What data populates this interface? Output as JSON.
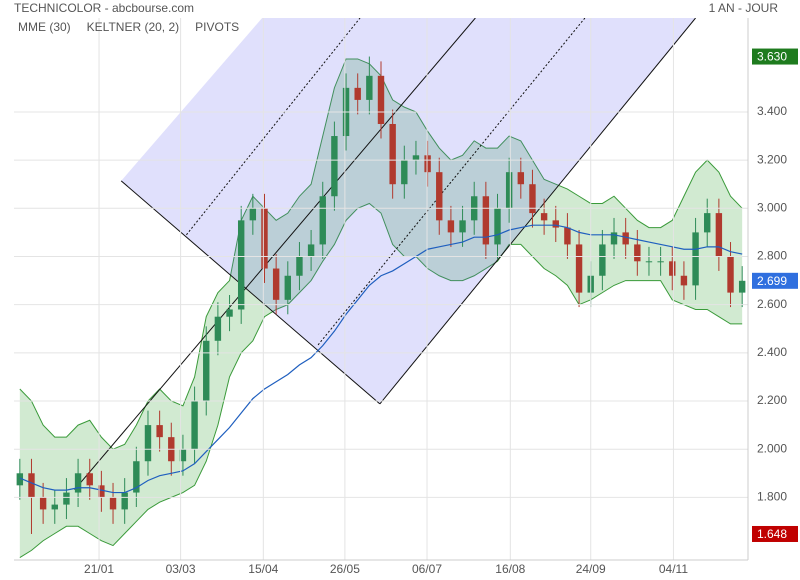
{
  "chart_data": {
    "type": "candlestick",
    "title": "TECHNICOLOR - abcbourse.com",
    "period": "1 AN - JOUR",
    "legend": [
      {
        "name": "MME (30)",
        "color": "#1f5fbf"
      },
      {
        "name": "KELTNER (20, 2)",
        "color": "#3a9a3a"
      },
      {
        "name": "PIVOTS",
        "color": "#555555"
      }
    ],
    "up_color": "#2e8b57",
    "down_color": "#b03a2e",
    "open": [
      1.85,
      1.9,
      1.8,
      1.75,
      1.77,
      1.82,
      1.9,
      1.85,
      1.8,
      1.75,
      1.82,
      1.95,
      2.1,
      2.05,
      1.95,
      2.0,
      2.2,
      2.45,
      2.55,
      2.58,
      2.95,
      3.0,
      2.75,
      2.62,
      2.72,
      2.8,
      2.85,
      3.05,
      3.3,
      3.5,
      3.45,
      3.55,
      3.35,
      3.1,
      3.2,
      3.22,
      3.15,
      2.95,
      2.9,
      2.95,
      3.05,
      2.85,
      3.0,
      3.15,
      3.1,
      2.98,
      2.95,
      2.92,
      2.85,
      2.65,
      2.72,
      2.85,
      2.9,
      2.85,
      2.78,
      2.78,
      2.78,
      2.72,
      2.68,
      2.9,
      2.98,
      2.8,
      2.65
    ],
    "high": [
      1.96,
      1.96,
      1.86,
      1.83,
      1.88,
      1.96,
      1.96,
      1.91,
      1.86,
      1.88,
      2.01,
      2.16,
      2.16,
      2.11,
      2.06,
      2.26,
      2.51,
      2.61,
      2.64,
      3.01,
      3.06,
      3.06,
      2.81,
      2.78,
      2.86,
      2.91,
      3.11,
      3.36,
      3.56,
      3.56,
      3.63,
      3.61,
      3.41,
      3.26,
      3.28,
      3.28,
      3.21,
      3.01,
      3.01,
      3.11,
      3.11,
      3.06,
      3.21,
      3.21,
      3.16,
      3.04,
      3.01,
      2.98,
      2.91,
      2.78,
      2.91,
      2.96,
      2.96,
      2.91,
      2.84,
      2.84,
      2.84,
      2.78,
      2.96,
      3.04,
      3.04,
      2.86,
      2.76
    ],
    "low": [
      1.79,
      1.648,
      1.69,
      1.69,
      1.71,
      1.76,
      1.79,
      1.74,
      1.69,
      1.69,
      1.76,
      1.89,
      1.99,
      1.89,
      1.89,
      1.94,
      2.14,
      2.39,
      2.49,
      2.52,
      2.89,
      2.69,
      2.56,
      2.56,
      2.66,
      2.74,
      2.79,
      2.99,
      3.24,
      3.39,
      3.39,
      3.29,
      3.04,
      3.04,
      3.14,
      3.09,
      2.89,
      2.84,
      2.84,
      2.89,
      2.79,
      2.79,
      2.94,
      3.04,
      2.92,
      2.89,
      2.86,
      2.79,
      2.59,
      2.59,
      2.66,
      2.79,
      2.79,
      2.72,
      2.72,
      2.72,
      2.66,
      2.62,
      2.62,
      2.84,
      2.74,
      2.59,
      2.59
    ],
    "close": [
      1.9,
      1.8,
      1.75,
      1.77,
      1.82,
      1.9,
      1.85,
      1.8,
      1.75,
      1.82,
      1.95,
      2.1,
      2.05,
      1.95,
      2.0,
      2.2,
      2.45,
      2.55,
      2.58,
      2.95,
      3.0,
      2.75,
      2.62,
      2.72,
      2.8,
      2.85,
      3.05,
      3.3,
      3.5,
      3.45,
      3.55,
      3.35,
      3.1,
      3.2,
      3.22,
      3.15,
      2.95,
      2.9,
      2.95,
      3.05,
      2.85,
      3.0,
      3.15,
      3.1,
      2.98,
      2.95,
      2.92,
      2.85,
      2.65,
      2.72,
      2.85,
      2.9,
      2.85,
      2.78,
      2.78,
      2.78,
      2.72,
      2.68,
      2.9,
      2.98,
      2.8,
      2.65,
      2.699
    ],
    "mme": [
      1.88,
      1.86,
      1.84,
      1.83,
      1.83,
      1.84,
      1.84,
      1.83,
      1.82,
      1.82,
      1.84,
      1.87,
      1.89,
      1.9,
      1.91,
      1.94,
      1.99,
      2.04,
      2.09,
      2.15,
      2.21,
      2.25,
      2.28,
      2.31,
      2.35,
      2.38,
      2.43,
      2.49,
      2.56,
      2.62,
      2.68,
      2.72,
      2.74,
      2.77,
      2.8,
      2.83,
      2.84,
      2.85,
      2.86,
      2.88,
      2.88,
      2.89,
      2.91,
      2.92,
      2.93,
      2.93,
      2.93,
      2.92,
      2.9,
      2.89,
      2.89,
      2.89,
      2.88,
      2.87,
      2.86,
      2.85,
      2.84,
      2.83,
      2.83,
      2.84,
      2.84,
      2.82,
      2.81
    ],
    "keltner_upper": [
      2.25,
      2.2,
      2.1,
      2.05,
      2.05,
      2.1,
      2.12,
      2.05,
      2.0,
      2.02,
      2.1,
      2.2,
      2.25,
      2.2,
      2.18,
      2.3,
      2.55,
      2.65,
      2.7,
      2.95,
      3.05,
      3.0,
      2.95,
      2.98,
      3.05,
      3.1,
      3.3,
      3.5,
      3.62,
      3.62,
      3.6,
      3.55,
      3.45,
      3.42,
      3.4,
      3.32,
      3.25,
      3.2,
      3.22,
      3.28,
      3.25,
      3.25,
      3.3,
      3.28,
      3.2,
      3.12,
      3.1,
      3.08,
      3.05,
      3.02,
      3.02,
      3.05,
      3.0,
      2.95,
      2.92,
      2.92,
      2.95,
      3.05,
      3.15,
      3.2,
      3.15,
      3.05,
      3.0
    ],
    "keltner_lower": [
      1.55,
      1.58,
      1.62,
      1.65,
      1.68,
      1.68,
      1.65,
      1.62,
      1.6,
      1.65,
      1.7,
      1.75,
      1.78,
      1.8,
      1.82,
      1.85,
      1.95,
      2.1,
      2.3,
      2.4,
      2.45,
      2.55,
      2.58,
      2.6,
      2.65,
      2.7,
      2.78,
      2.85,
      2.95,
      3.0,
      3.02,
      2.98,
      2.85,
      2.8,
      2.8,
      2.75,
      2.72,
      2.7,
      2.7,
      2.72,
      2.75,
      2.78,
      2.85,
      2.85,
      2.8,
      2.75,
      2.72,
      2.68,
      2.6,
      2.62,
      2.65,
      2.68,
      2.7,
      2.7,
      2.7,
      2.7,
      2.62,
      2.6,
      2.58,
      2.58,
      2.55,
      2.52,
      2.52
    ],
    "pivot_channel": {
      "area": {
        "x": [
          8.7,
          20.8,
          58.0,
          30.9
        ],
        "y": [
          3.114,
          3.79,
          3.79,
          2.188
        ]
      },
      "lines": [
        {
          "x": [
            4.7,
            39.1
          ],
          "y": [
            1.832,
            3.79
          ],
          "style": "solid"
        },
        {
          "x": [
            30.9,
            58.0
          ],
          "y": [
            2.188,
            3.79
          ],
          "style": "solid"
        },
        {
          "x": [
            8.7,
            30.9
          ],
          "y": [
            3.114,
            2.188
          ],
          "style": "solid"
        },
        {
          "x": [
            14.3,
            29.2
          ],
          "y": [
            2.89,
            3.79
          ],
          "style": "dotted"
        },
        {
          "x": [
            25.6,
            48.5
          ],
          "y": [
            2.433,
            3.79
          ],
          "style": "dotted"
        }
      ]
    },
    "price_markers": [
      {
        "value": 3.63,
        "label": "3.630",
        "color": "#1e7b1e"
      },
      {
        "value": 2.699,
        "label": "2.699",
        "color": "#2f6fdf"
      },
      {
        "value": 1.648,
        "label": "1.648",
        "color": "#c00000"
      }
    ],
    "xlim": [
      -0.5,
      62.5
    ],
    "ylim": [
      1.54,
      3.79
    ],
    "xticks": [
      {
        "value": 6.8,
        "label": "21/01"
      },
      {
        "value": 13.8,
        "label": "03/03"
      },
      {
        "value": 20.9,
        "label": "15/04"
      },
      {
        "value": 27.9,
        "label": "26/05"
      },
      {
        "value": 34.95,
        "label": "06/07"
      },
      {
        "value": 42.1,
        "label": "16/08"
      },
      {
        "value": 49.0,
        "label": "24/09"
      },
      {
        "value": 56.1,
        "label": "04/11"
      }
    ],
    "yticks": [
      {
        "value": 1.8,
        "label": "1.800"
      },
      {
        "value": 2.0,
        "label": "2.000"
      },
      {
        "value": 2.2,
        "label": "2.200"
      },
      {
        "value": 2.4,
        "label": "2.400"
      },
      {
        "value": 2.6,
        "label": "2.600"
      },
      {
        "value": 2.8,
        "label": "2.800"
      },
      {
        "value": 3.0,
        "label": "3.000"
      },
      {
        "value": 3.2,
        "label": "3.200"
      },
      {
        "value": 3.4,
        "label": "3.400"
      }
    ],
    "grid": true
  }
}
